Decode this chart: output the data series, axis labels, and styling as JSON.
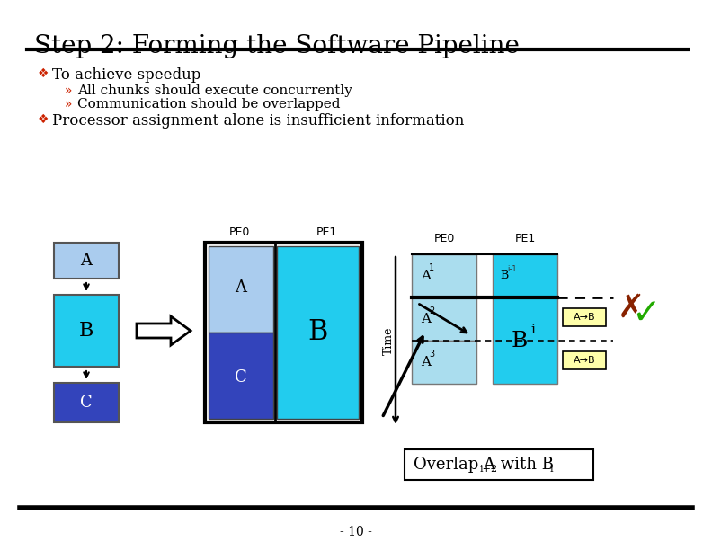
{
  "title": "Step 2: Forming the Software Pipeline",
  "bullet1": "To achieve speedup",
  "sub1": "All chunks should execute concurrently",
  "sub2": "Communication should be overlapped",
  "bullet2": "Processor assignment alone is insufficient information",
  "page_num": "- 10 -",
  "color_A_light": "#aaccee",
  "color_B_cyan": "#22ccee",
  "color_C_blue": "#3344bb",
  "color_timeline_A": "#aaddee",
  "color_timeline_B": "#22ccee",
  "color_AB_box": "#ffffaa",
  "bg_color": "#ffffff",
  "bullet_color": "#cc2200",
  "title_fontsize": 20,
  "body_fontsize": 12,
  "sub_fontsize": 11
}
